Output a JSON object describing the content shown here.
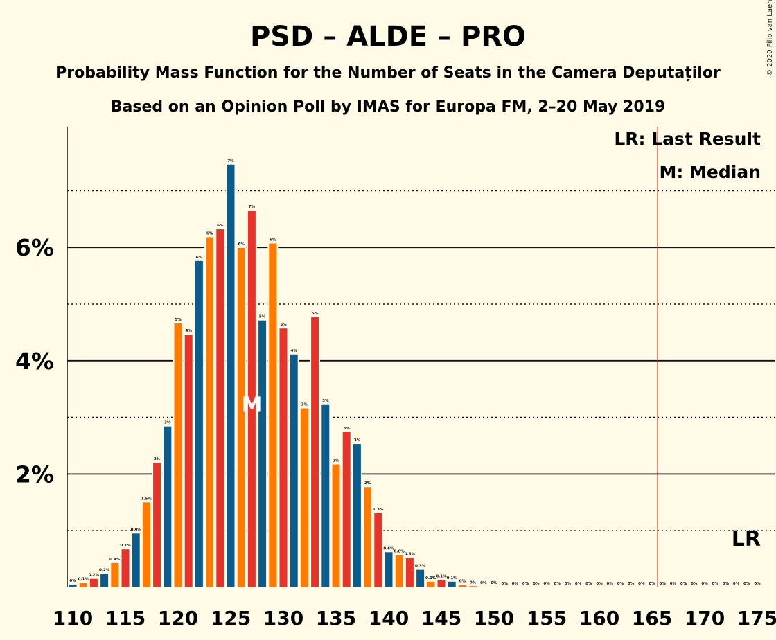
{
  "title": "PSD – ALDE – PRO",
  "subtitle1": "Probability Mass Function for the Number of Seats in the Camera Deputaților",
  "subtitle2": "Based on an Opinion Poll by IMAS for Europa FM, 2–20 May 2019",
  "copyright": "© 2020 Filip van Laenen",
  "legend": {
    "lr": "LR: Last Result",
    "median": "M: Median"
  },
  "lr_label": "LR",
  "median_label": "M",
  "colors": {
    "background": "#FFFBE6",
    "blue": "#0B5C8C",
    "orange": "#FF7A00",
    "red": "#E8332A",
    "lr_line": "#C0392B"
  },
  "chart_data": {
    "type": "bar",
    "x": [
      110,
      111,
      112,
      113,
      114,
      115,
      116,
      117,
      118,
      119,
      120,
      121,
      122,
      123,
      124,
      125,
      126,
      127,
      128,
      129,
      130,
      131,
      132,
      133,
      134,
      135,
      136,
      137,
      138,
      139,
      140,
      141,
      142,
      143,
      144,
      145,
      146,
      147,
      148,
      149,
      150,
      151,
      152,
      153,
      154,
      155,
      156,
      157,
      158,
      159,
      160,
      161,
      162,
      163,
      164,
      165,
      166,
      167,
      168,
      169,
      170,
      171,
      172,
      173,
      174,
      175
    ],
    "values": [
      0.05,
      0.08,
      0.15,
      0.24,
      0.43,
      0.67,
      0.95,
      1.5,
      2.2,
      2.84,
      4.66,
      4.46,
      5.76,
      6.18,
      6.32,
      7.46,
      5.99,
      6.65,
      4.71,
      6.07,
      4.57,
      4.11,
      3.16,
      4.77,
      3.23,
      2.17,
      2.74,
      2.53,
      1.77,
      1.31,
      0.62,
      0.57,
      0.52,
      0.31,
      0.1,
      0.13,
      0.1,
      0.04,
      0.02,
      0.01,
      0.01,
      0.0,
      0.0,
      0.0,
      0.0,
      0.0,
      0.0,
      0.0,
      0.0,
      0.0,
      0.0,
      0.0,
      0.0,
      0.0,
      0.0,
      0.0,
      0.0,
      0.0,
      0.0,
      0.0,
      0.0,
      0.0,
      0.0,
      0.0,
      0.0,
      0.0
    ],
    "data_labels": [
      "0%",
      "0.1%",
      "0.2%",
      "0.2%",
      "0.4%",
      "0.7%",
      "0.9%",
      "1.5%",
      "2%",
      "3%",
      "5%",
      "4%",
      "6%",
      "6%",
      "6%",
      "7%",
      "6%",
      "7%",
      "5%",
      "6%",
      "5%",
      "4%",
      "3%",
      "5%",
      "3%",
      "2%",
      "3%",
      "3%",
      "2%",
      "1.3%",
      "0.6%",
      "0.6%",
      "0.5%",
      "0.3%",
      "0.1%",
      "0.1%",
      "0.1%",
      "0%",
      "0%",
      "0%",
      "0%",
      "0%",
      "0%",
      "0%",
      "0%",
      "0%",
      "0%",
      "0%",
      "0%",
      "0%",
      "0%",
      "0%",
      "0%",
      "0%",
      "0%",
      "0%",
      "0%",
      "0%",
      "0%",
      "0%",
      "0%",
      "0%",
      "0%",
      "0%",
      "0%",
      "0%"
    ],
    "xticks": [
      "110",
      "115",
      "120",
      "125",
      "130",
      "135",
      "140",
      "145",
      "150",
      "155",
      "160",
      "165",
      "170",
      "175"
    ],
    "yticks": [
      "2%",
      "4%",
      "6%"
    ],
    "y_gridlines_solid": [
      2,
      4,
      6
    ],
    "y_gridlines_dotted": [
      1,
      3,
      5,
      7
    ],
    "ylim": [
      0,
      8.1
    ],
    "median": 127,
    "last_result": 166,
    "color_cycle": [
      "blue",
      "orange",
      "red"
    ]
  }
}
